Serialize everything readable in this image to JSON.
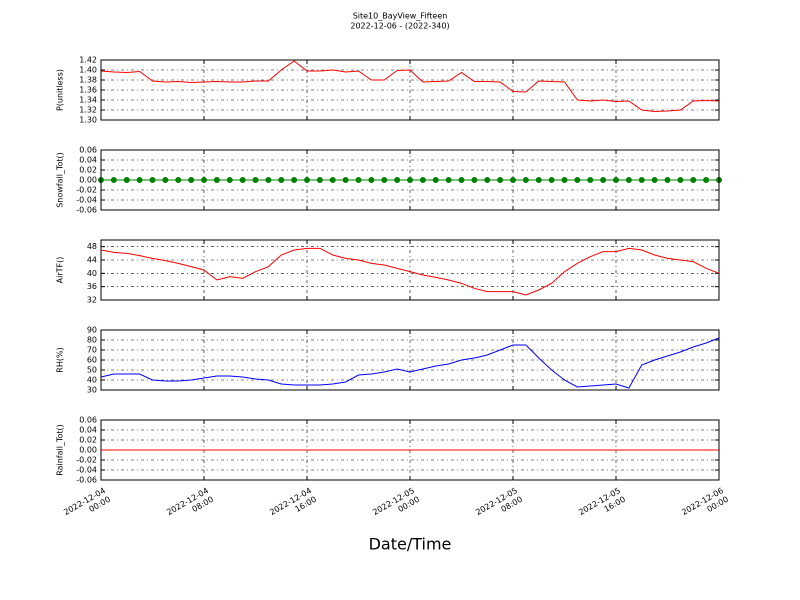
{
  "title": "Site10_BayView_Fifteen",
  "subtitle": "2022-12-06 - (2022-340)",
  "chart_data": [
    {
      "type": "line",
      "ylabel": "P(unitless)",
      "x": [
        "2022-12-04 00:00",
        "2022-12-04 01:00",
        "2022-12-04 02:00",
        "2022-12-04 03:00",
        "2022-12-04 04:00",
        "2022-12-04 05:00",
        "2022-12-04 06:00",
        "2022-12-04 07:00",
        "2022-12-04 08:00",
        "2022-12-04 09:00",
        "2022-12-04 10:00",
        "2022-12-04 11:00",
        "2022-12-04 12:00",
        "2022-12-04 13:00",
        "2022-12-04 14:00",
        "2022-12-04 15:00",
        "2022-12-04 16:00",
        "2022-12-04 17:00",
        "2022-12-04 18:00",
        "2022-12-04 19:00",
        "2022-12-04 20:00",
        "2022-12-04 21:00",
        "2022-12-04 22:00",
        "2022-12-04 23:00",
        "2022-12-05 00:00",
        "2022-12-05 01:00",
        "2022-12-05 02:00",
        "2022-12-05 03:00",
        "2022-12-05 04:00",
        "2022-12-05 05:00",
        "2022-12-05 06:00",
        "2022-12-05 07:00",
        "2022-12-05 08:00",
        "2022-12-05 09:00",
        "2022-12-05 10:00",
        "2022-12-05 11:00",
        "2022-12-05 12:00",
        "2022-12-05 13:00",
        "2022-12-05 14:00",
        "2022-12-05 15:00",
        "2022-12-05 16:00",
        "2022-12-05 17:00",
        "2022-12-05 18:00",
        "2022-12-05 19:00",
        "2022-12-05 20:00",
        "2022-12-05 21:00",
        "2022-12-05 22:00",
        "2022-12-05 23:00",
        "2022-12-06 00:00"
      ],
      "series": [
        {
          "color": "#ff0000",
          "values": [
            1.398,
            1.396,
            1.395,
            1.397,
            1.378,
            1.376,
            1.377,
            1.375,
            1.376,
            1.377,
            1.376,
            1.376,
            1.378,
            1.378,
            1.4,
            1.418,
            1.398,
            1.398,
            1.4,
            1.396,
            1.398,
            1.38,
            1.38,
            1.399,
            1.4,
            1.376,
            1.377,
            1.378,
            1.395,
            1.377,
            1.377,
            1.376,
            1.357,
            1.356,
            1.378,
            1.377,
            1.376,
            1.34,
            1.338,
            1.34,
            1.337,
            1.338,
            1.32,
            1.317,
            1.318,
            1.32,
            1.338,
            1.339,
            1.338
          ]
        }
      ],
      "xlim": [
        "2022-12-04 00:00",
        "2022-12-06 00:00"
      ],
      "ylim": [
        1.3,
        1.42
      ],
      "yticks": [
        {
          "value": 1.3,
          "label": "1.30"
        },
        1.32,
        1.34,
        1.36,
        1.38,
        {
          "value": 1.4,
          "label": "1.40"
        },
        1.42
      ],
      "grid": true
    },
    {
      "type": "line",
      "ylabel": "Snowfall_Tot()",
      "x": [
        "2022-12-04 00:00",
        "2022-12-04 01:00",
        "2022-12-04 02:00",
        "2022-12-04 03:00",
        "2022-12-04 04:00",
        "2022-12-04 05:00",
        "2022-12-04 06:00",
        "2022-12-04 07:00",
        "2022-12-04 08:00",
        "2022-12-04 09:00",
        "2022-12-04 10:00",
        "2022-12-04 11:00",
        "2022-12-04 12:00",
        "2022-12-04 13:00",
        "2022-12-04 14:00",
        "2022-12-04 15:00",
        "2022-12-04 16:00",
        "2022-12-04 17:00",
        "2022-12-04 18:00",
        "2022-12-04 19:00",
        "2022-12-04 20:00",
        "2022-12-04 21:00",
        "2022-12-04 22:00",
        "2022-12-04 23:00",
        "2022-12-05 00:00",
        "2022-12-05 01:00",
        "2022-12-05 02:00",
        "2022-12-05 03:00",
        "2022-12-05 04:00",
        "2022-12-05 05:00",
        "2022-12-05 06:00",
        "2022-12-05 07:00",
        "2022-12-05 08:00",
        "2022-12-05 09:00",
        "2022-12-05 10:00",
        "2022-12-05 11:00",
        "2022-12-05 12:00",
        "2022-12-05 13:00",
        "2022-12-05 14:00",
        "2022-12-05 15:00",
        "2022-12-05 16:00",
        "2022-12-05 17:00",
        "2022-12-05 18:00",
        "2022-12-05 19:00",
        "2022-12-05 20:00",
        "2022-12-05 21:00",
        "2022-12-05 22:00",
        "2022-12-05 23:00",
        "2022-12-06 00:00"
      ],
      "series": [
        {
          "color": "#008000",
          "marker": "o",
          "values": [
            0,
            0,
            0,
            0,
            0,
            0,
            0,
            0,
            0,
            0,
            0,
            0,
            0,
            0,
            0,
            0,
            0,
            0,
            0,
            0,
            0,
            0,
            0,
            0,
            0,
            0,
            0,
            0,
            0,
            0,
            0,
            0,
            0,
            0,
            0,
            0,
            0,
            0,
            0,
            0,
            0,
            0,
            0,
            0,
            0,
            0,
            0,
            0,
            0
          ]
        }
      ],
      "xlim": [
        "2022-12-04 00:00",
        "2022-12-06 00:00"
      ],
      "ylim": [
        -0.06,
        0.06
      ],
      "yticks": [
        -0.06,
        -0.04,
        -0.02,
        {
          "value": 0,
          "label": "0.00"
        },
        0.02,
        0.04,
        0.06
      ],
      "grid": true
    },
    {
      "type": "line",
      "ylabel": "AirTF()",
      "x": [
        "2022-12-04 00:00",
        "2022-12-04 01:00",
        "2022-12-04 02:00",
        "2022-12-04 03:00",
        "2022-12-04 04:00",
        "2022-12-04 05:00",
        "2022-12-04 06:00",
        "2022-12-04 07:00",
        "2022-12-04 08:00",
        "2022-12-04 09:00",
        "2022-12-04 10:00",
        "2022-12-04 11:00",
        "2022-12-04 12:00",
        "2022-12-04 13:00",
        "2022-12-04 14:00",
        "2022-12-04 15:00",
        "2022-12-04 16:00",
        "2022-12-04 17:00",
        "2022-12-04 18:00",
        "2022-12-04 19:00",
        "2022-12-04 20:00",
        "2022-12-04 21:00",
        "2022-12-04 22:00",
        "2022-12-04 23:00",
        "2022-12-05 00:00",
        "2022-12-05 01:00",
        "2022-12-05 02:00",
        "2022-12-05 03:00",
        "2022-12-05 04:00",
        "2022-12-05 05:00",
        "2022-12-05 06:00",
        "2022-12-05 07:00",
        "2022-12-05 08:00",
        "2022-12-05 09:00",
        "2022-12-05 10:00",
        "2022-12-05 11:00",
        "2022-12-05 12:00",
        "2022-12-05 13:00",
        "2022-12-05 14:00",
        "2022-12-05 15:00",
        "2022-12-05 16:00",
        "2022-12-05 17:00",
        "2022-12-05 18:00",
        "2022-12-05 19:00",
        "2022-12-05 20:00",
        "2022-12-05 21:00",
        "2022-12-05 22:00",
        "2022-12-05 23:00",
        "2022-12-06 00:00"
      ],
      "series": [
        {
          "color": "#ff0000",
          "values": [
            47,
            46.3,
            46,
            45.3,
            44.5,
            43.8,
            43,
            42,
            41,
            38,
            39,
            38.5,
            40.5,
            42,
            45.5,
            47,
            47.5,
            47.5,
            45.5,
            44.5,
            44,
            43,
            42.5,
            41.5,
            40.5,
            39.5,
            38.8,
            38,
            37,
            35.5,
            34.5,
            34.5,
            34.5,
            33.5,
            35,
            37,
            40.5,
            43,
            45,
            46.5,
            46.5,
            47.5,
            47,
            45.5,
            44.5,
            44,
            43.5,
            41.5,
            40
          ]
        }
      ],
      "xlim": [
        "2022-12-04 00:00",
        "2022-12-06 00:00"
      ],
      "ylim": [
        32,
        50
      ],
      "yticks": [
        32,
        36,
        40,
        44,
        48
      ],
      "grid": true
    },
    {
      "type": "line",
      "ylabel": "RH(%)",
      "x": [
        "2022-12-04 00:00",
        "2022-12-04 01:00",
        "2022-12-04 02:00",
        "2022-12-04 03:00",
        "2022-12-04 04:00",
        "2022-12-04 05:00",
        "2022-12-04 06:00",
        "2022-12-04 07:00",
        "2022-12-04 08:00",
        "2022-12-04 09:00",
        "2022-12-04 10:00",
        "2022-12-04 11:00",
        "2022-12-04 12:00",
        "2022-12-04 13:00",
        "2022-12-04 14:00",
        "2022-12-04 15:00",
        "2022-12-04 16:00",
        "2022-12-04 17:00",
        "2022-12-04 18:00",
        "2022-12-04 19:00",
        "2022-12-04 20:00",
        "2022-12-04 21:00",
        "2022-12-04 22:00",
        "2022-12-04 23:00",
        "2022-12-05 00:00",
        "2022-12-05 01:00",
        "2022-12-05 02:00",
        "2022-12-05 03:00",
        "2022-12-05 04:00",
        "2022-12-05 05:00",
        "2022-12-05 06:00",
        "2022-12-05 07:00",
        "2022-12-05 08:00",
        "2022-12-05 09:00",
        "2022-12-05 10:00",
        "2022-12-05 11:00",
        "2022-12-05 12:00",
        "2022-12-05 13:00",
        "2022-12-05 14:00",
        "2022-12-05 15:00",
        "2022-12-05 16:00",
        "2022-12-05 17:00",
        "2022-12-05 18:00",
        "2022-12-05 19:00",
        "2022-12-05 20:00",
        "2022-12-05 21:00",
        "2022-12-05 22:00",
        "2022-12-05 23:00",
        "2022-12-06 00:00"
      ],
      "series": [
        {
          "color": "#0000ff",
          "values": [
            43,
            46,
            46,
            46,
            40,
            39,
            39,
            40,
            42,
            44,
            44,
            43,
            41,
            40,
            36,
            35,
            35,
            35,
            36,
            38,
            45,
            46,
            48,
            51,
            48,
            51,
            54,
            56,
            60,
            62,
            65,
            70,
            75,
            75,
            62,
            50,
            40,
            33,
            34,
            35,
            36,
            32,
            55,
            60,
            64,
            68,
            73,
            77,
            82
          ]
        }
      ],
      "xlim": [
        "2022-12-04 00:00",
        "2022-12-06 00:00"
      ],
      "ylim": [
        30,
        90
      ],
      "yticks": [
        30,
        40,
        50,
        60,
        70,
        80,
        90
      ],
      "grid": true
    },
    {
      "type": "line",
      "ylabel": "Rainfall_Tot()",
      "xlabel": "Date/Time",
      "x": [
        "2022-12-04 00:00",
        "2022-12-04 01:00",
        "2022-12-04 02:00",
        "2022-12-04 03:00",
        "2022-12-04 04:00",
        "2022-12-04 05:00",
        "2022-12-04 06:00",
        "2022-12-04 07:00",
        "2022-12-04 08:00",
        "2022-12-04 09:00",
        "2022-12-04 10:00",
        "2022-12-04 11:00",
        "2022-12-04 12:00",
        "2022-12-04 13:00",
        "2022-12-04 14:00",
        "2022-12-04 15:00",
        "2022-12-04 16:00",
        "2022-12-04 17:00",
        "2022-12-04 18:00",
        "2022-12-04 19:00",
        "2022-12-04 20:00",
        "2022-12-04 21:00",
        "2022-12-04 22:00",
        "2022-12-04 23:00",
        "2022-12-05 00:00",
        "2022-12-05 01:00",
        "2022-12-05 02:00",
        "2022-12-05 03:00",
        "2022-12-05 04:00",
        "2022-12-05 05:00",
        "2022-12-05 06:00",
        "2022-12-05 07:00",
        "2022-12-05 08:00",
        "2022-12-05 09:00",
        "2022-12-05 10:00",
        "2022-12-05 11:00",
        "2022-12-05 12:00",
        "2022-12-05 13:00",
        "2022-12-05 14:00",
        "2022-12-05 15:00",
        "2022-12-05 16:00",
        "2022-12-05 17:00",
        "2022-12-05 18:00",
        "2022-12-05 19:00",
        "2022-12-05 20:00",
        "2022-12-05 21:00",
        "2022-12-05 22:00",
        "2022-12-05 23:00",
        "2022-12-06 00:00"
      ],
      "series": [
        {
          "color": "#ff0000",
          "values": [
            0,
            0,
            0,
            0,
            0,
            0,
            0,
            0,
            0,
            0,
            0,
            0,
            0,
            0,
            0,
            0,
            0,
            0,
            0,
            0,
            0,
            0,
            0,
            0,
            0,
            0,
            0,
            0,
            0,
            0,
            0,
            0,
            0,
            0,
            0,
            0,
            0,
            0,
            0,
            0,
            0,
            0,
            0,
            0,
            0,
            0,
            0,
            0,
            0
          ]
        }
      ],
      "xlim": [
        "2022-12-04 00:00",
        "2022-12-06 00:00"
      ],
      "ylim": [
        -0.06,
        0.06
      ],
      "yticks": [
        -0.06,
        -0.04,
        -0.02,
        {
          "value": 0,
          "label": "0.00"
        },
        0.02,
        0.04,
        0.06
      ],
      "xticks": [
        {
          "value": "2022-12-04 00:00",
          "label": "2022-12-04\n00:00"
        },
        {
          "value": "2022-12-04 08:00",
          "label": "2022-12-04\n08:00"
        },
        {
          "value": "2022-12-04 16:00",
          "label": "2022-12-04\n16:00"
        },
        {
          "value": "2022-12-05 00:00",
          "label": "2022-12-05\n00:00"
        },
        {
          "value": "2022-12-05 08:00",
          "label": "2022-12-05\n08:00"
        },
        {
          "value": "2022-12-05 16:00",
          "label": "2022-12-05\n16:00"
        },
        {
          "value": "2022-12-06 00:00",
          "label": "2022-12-06\n00:00"
        }
      ],
      "grid": true
    }
  ]
}
